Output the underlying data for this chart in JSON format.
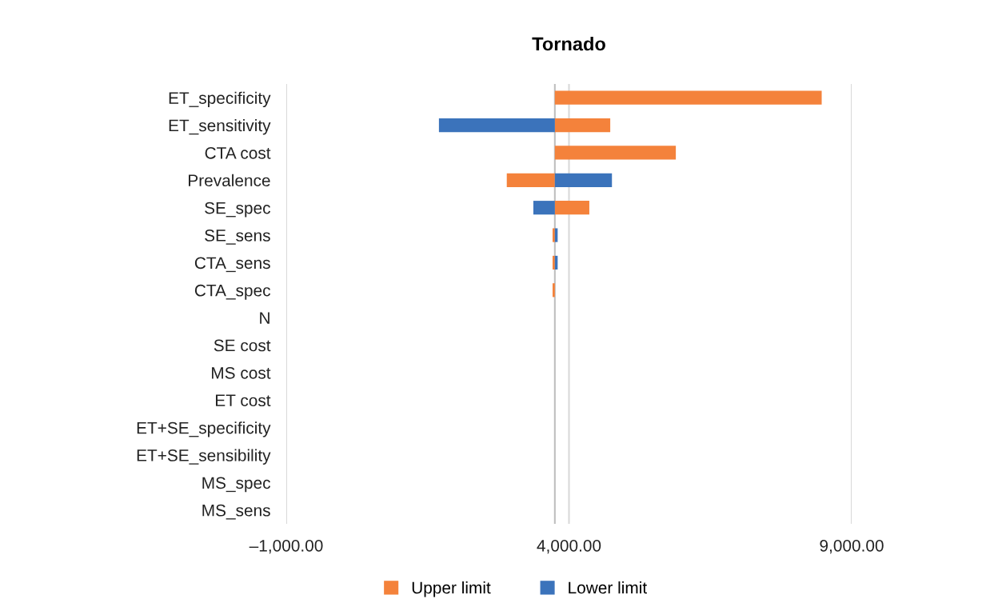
{
  "chart_data": {
    "type": "bar",
    "title": "Tornado",
    "orientation": "horizontal",
    "categories": [
      "ET_specificity",
      "ET_sensitivity",
      "CTA cost",
      "Prevalence",
      "SE_spec",
      "SE_sens",
      "CTA_sens",
      "CTA_spec",
      "N",
      "SE cost",
      "MS cost",
      "ET cost",
      "ET+SE_specificity",
      "ET+SE_sensibility",
      "MS_spec",
      "MS_sens"
    ],
    "series": [
      {
        "name": "Upper limit",
        "color": "#f4823b",
        "base": [
          3750,
          3750,
          3750,
          3750,
          3750,
          3750,
          3750,
          3750,
          null,
          null,
          null,
          null,
          null,
          null,
          null,
          null
        ],
        "values": [
          4720,
          980,
          2140,
          -850,
          610,
          -40,
          -40,
          -40,
          null,
          null,
          null,
          null,
          null,
          null,
          null,
          null
        ]
      },
      {
        "name": "Lower limit",
        "color": "#3b73bb",
        "base": [
          null,
          3750,
          null,
          3750,
          3750,
          3750,
          3750,
          null,
          null,
          null,
          null,
          null,
          null,
          null,
          null,
          null
        ],
        "values": [
          null,
          -2050,
          null,
          1010,
          -380,
          50,
          50,
          null,
          null,
          null,
          null,
          null,
          null,
          null,
          null,
          null
        ]
      }
    ],
    "xlim": [
      -1000,
      9000
    ],
    "xticks": [
      {
        "value": -1000,
        "label": "–1,000.00"
      },
      {
        "value": 4000,
        "label": "4,000.00"
      },
      {
        "value": 9000,
        "label": "9,000.00"
      }
    ],
    "ref_lines": [
      {
        "axis": "x",
        "value": 3750,
        "color": "#bfbfbf"
      }
    ],
    "grid": "x",
    "legend": "bottom"
  }
}
